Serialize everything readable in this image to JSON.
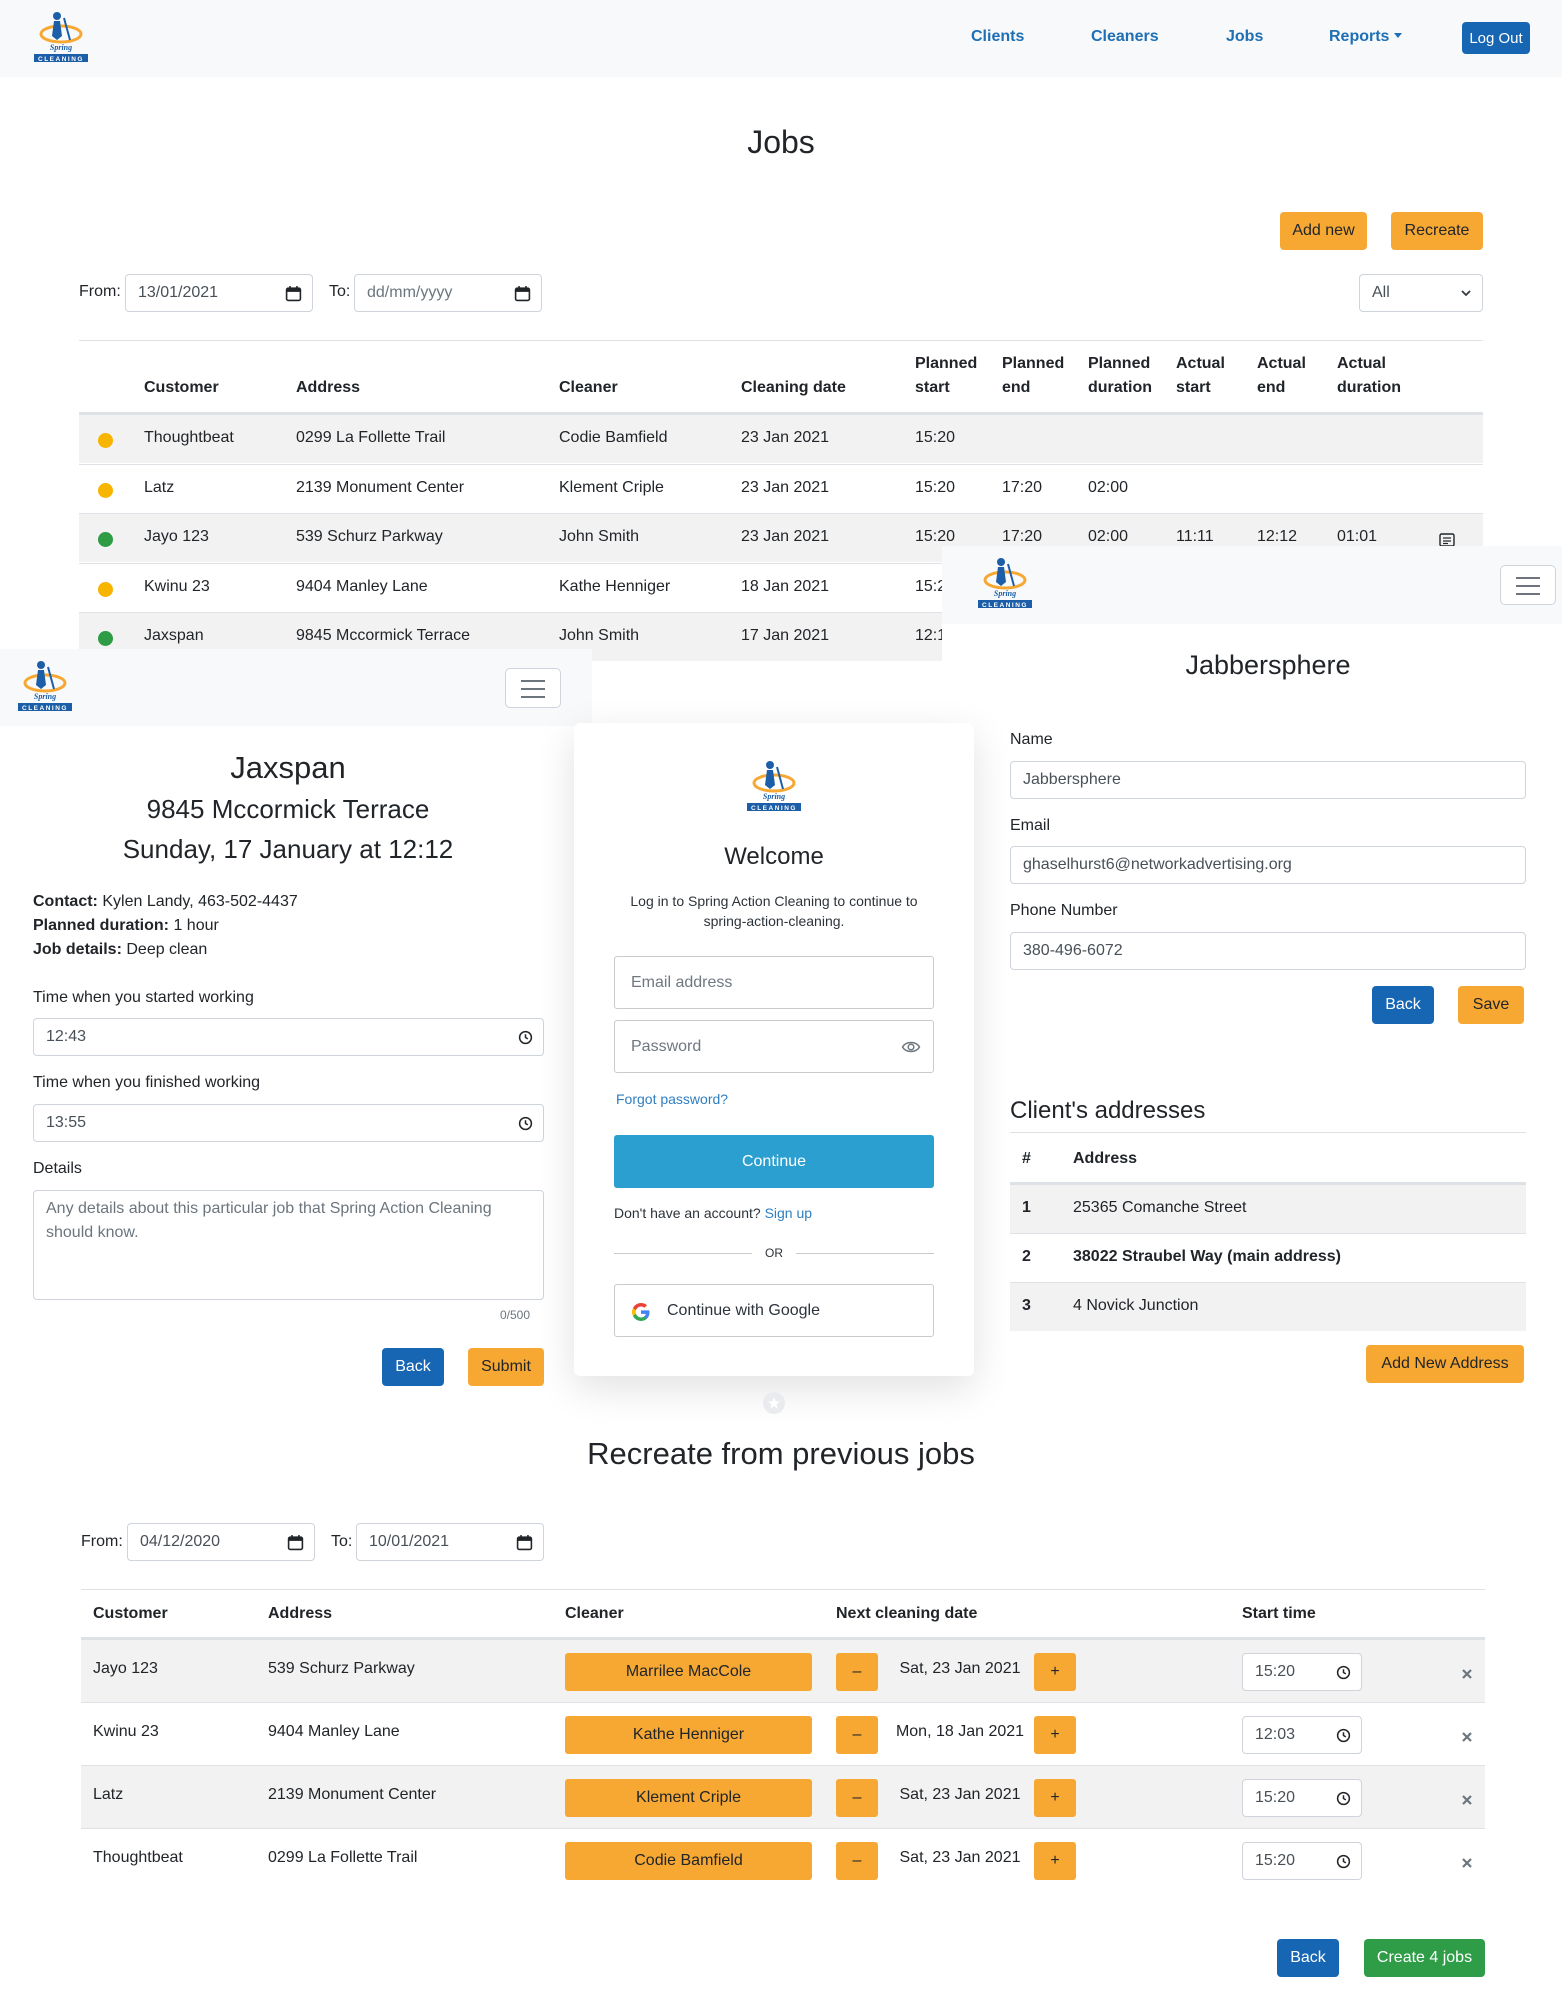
{
  "brand": {
    "line1": "Spring",
    "line2": "Action",
    "line3": "CLEANING"
  },
  "topnav": {
    "links": [
      "Clients",
      "Cleaners",
      "Jobs",
      "Reports"
    ],
    "logout": "Log Out"
  },
  "jobs": {
    "title": "Jobs",
    "add_new": "Add new",
    "recreate": "Recreate",
    "from_label": "From:",
    "from_value": "13/01/2021",
    "to_label": "To:",
    "to_placeholder": "dd/mm/yyyy",
    "filter_value": "All",
    "headers": {
      "customer": "Customer",
      "address": "Address",
      "cleaner": "Cleaner",
      "date": "Cleaning date",
      "ps1": "Planned",
      "ps2": "start",
      "pe1": "Planned",
      "pe2": "end",
      "pd1": "Planned",
      "pd2": "duration",
      "as1": "Actual",
      "as2": "start",
      "ae1": "Actual",
      "ae2": "end",
      "ad1": "Actual",
      "ad2": "duration"
    },
    "rows": [
      {
        "status": "#f7b500",
        "customer": "Thoughtbeat",
        "address": "0299 La Follette Trail",
        "cleaner": "Codie Bamfield",
        "date": "23 Jan 2021",
        "pstart": "15:20",
        "pend": "",
        "pdur": "",
        "astart": "",
        "aend": "",
        "adur": ""
      },
      {
        "status": "#f7b500",
        "customer": "Latz",
        "address": "2139 Monument Center",
        "cleaner": "Klement Criple",
        "date": "23 Jan 2021",
        "pstart": "15:20",
        "pend": "17:20",
        "pdur": "02:00",
        "astart": "",
        "aend": "",
        "adur": ""
      },
      {
        "status": "#2e9b45",
        "customer": "Jayo 123",
        "address": "539 Schurz Parkway",
        "cleaner": "John Smith",
        "date": "23 Jan 2021",
        "pstart": "15:20",
        "pend": "17:20",
        "pdur": "02:00",
        "astart": "11:11",
        "aend": "12:12",
        "adur": "01:01"
      },
      {
        "status": "#f7b500",
        "customer": "Kwinu 23",
        "address": "9404 Manley Lane",
        "cleaner": "Kathe Henniger",
        "date": "18 Jan 2021",
        "pstart": "15:2",
        "pend": "",
        "pdur": "",
        "astart": "",
        "aend": "",
        "adur": ""
      },
      {
        "status": "#2e9b45",
        "customer": "Jaxspan",
        "address": "9845 Mccormick Terrace",
        "cleaner": "John Smith",
        "date": "17 Jan 2021",
        "pstart": "12:1",
        "pend": "",
        "pdur": "",
        "astart": "",
        "aend": "",
        "adur": ""
      }
    ]
  },
  "job_detail": {
    "title": "Jaxspan",
    "address": "9845 Mccormick Terrace",
    "when": "Sunday, 17 January at 12:12",
    "contact_label": "Contact:",
    "contact_value": "Kylen Landy, 463-502-4437",
    "duration_label": "Planned duration:",
    "duration_value": "1 hour",
    "details_label": "Job details:",
    "details_value": "Deep clean",
    "start_label": "Time when you started working",
    "start_value": "12:43",
    "finish_label": "Time when you finished working",
    "finish_value": "13:55",
    "details_field_label": "Details",
    "details_placeholder": "Any details about this particular job that Spring Action Cleaning should know.",
    "counter": "0/500",
    "back": "Back",
    "submit": "Submit"
  },
  "login": {
    "title": "Welcome",
    "subtitle": "Log in to Spring Action Cleaning to continue to spring-action-cleaning.",
    "email_placeholder": "Email address",
    "password_placeholder": "Password",
    "forgot": "Forgot password?",
    "continue": "Continue",
    "no_account": "Don't have an account?",
    "signup": "Sign up",
    "or": "OR",
    "google": "Continue with Google"
  },
  "client": {
    "title": "Jabbersphere",
    "name_label": "Name",
    "name_value": "Jabbersphere",
    "email_label": "Email",
    "email_value": "ghaselhurst6@networkadvertising.org",
    "phone_label": "Phone Number",
    "phone_value": "380-496-6072",
    "back": "Back",
    "save": "Save",
    "addresses_title": "Client's addresses",
    "col_num": "#",
    "col_address": "Address",
    "addresses": [
      {
        "num": "1",
        "address": "25365 Comanche Street"
      },
      {
        "num": "2",
        "address": "38022 Straubel Way (main address)"
      },
      {
        "num": "3",
        "address": "4 Novick Junction"
      }
    ],
    "add_address": "Add New Address"
  },
  "recreate": {
    "title": "Recreate from previous jobs",
    "from_label": "From:",
    "from_value": "04/12/2020",
    "to_label": "To:",
    "to_value": "10/01/2021",
    "headers": {
      "customer": "Customer",
      "address": "Address",
      "cleaner": "Cleaner",
      "next": "Next cleaning date",
      "start": "Start time"
    },
    "rows": [
      {
        "customer": "Jayo 123",
        "address": "539 Schurz Parkway",
        "cleaner": "Marrilee MacCole",
        "date": "Sat, 23 Jan 2021",
        "time": "15:20"
      },
      {
        "customer": "Kwinu 23",
        "address": "9404 Manley Lane",
        "cleaner": "Kathe Henniger",
        "date": "Mon, 18 Jan 2021",
        "time": "12:03"
      },
      {
        "customer": "Latz",
        "address": "2139 Monument Center",
        "cleaner": "Klement Criple",
        "date": "Sat, 23 Jan 2021",
        "time": "15:20"
      },
      {
        "customer": "Thoughtbeat",
        "address": "0299 La Follette Trail",
        "cleaner": "Codie Bamfield",
        "date": "Sat, 23 Jan 2021",
        "time": "15:20"
      }
    ],
    "minus": "–",
    "plus": "+",
    "back": "Back",
    "create": "Create 4 jobs"
  }
}
